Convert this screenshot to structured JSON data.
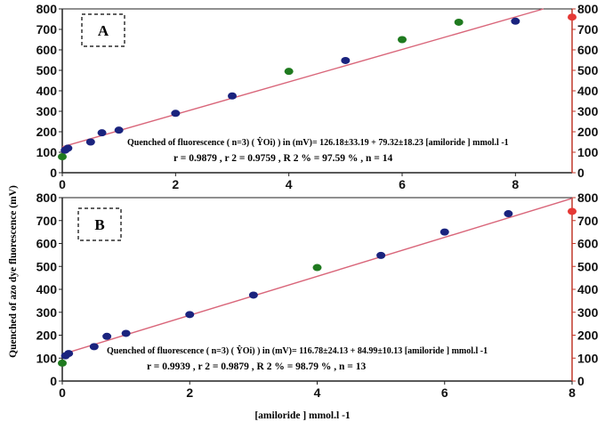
{
  "figure": {
    "ylabel": "Quenched of azo dye fluorescence  (mV)",
    "xlabel": "[amiloride ] mmol.l -1"
  },
  "chart_data": [
    {
      "type": "scatter",
      "panel_label": "A",
      "xlim": [
        0,
        9
      ],
      "ylim": [
        0,
        800
      ],
      "x_ticks": [
        0,
        2,
        4,
        6,
        8
      ],
      "y_ticks": [
        0,
        100,
        200,
        300,
        400,
        500,
        600,
        700,
        800
      ],
      "y_ticks_right": [
        0,
        100,
        200,
        300,
        400,
        500,
        600,
        700,
        800
      ],
      "grid": false,
      "points": [
        {
          "x": 0.0,
          "y": 78,
          "color": "#1f7a1f"
        },
        {
          "x": 0.05,
          "y": 110,
          "color": "#1a237e"
        },
        {
          "x": 0.1,
          "y": 120,
          "color": "#1a237e"
        },
        {
          "x": 0.5,
          "y": 150,
          "color": "#1a237e"
        },
        {
          "x": 0.7,
          "y": 195,
          "color": "#1a237e"
        },
        {
          "x": 1.0,
          "y": 208,
          "color": "#1a237e"
        },
        {
          "x": 2.0,
          "y": 290,
          "color": "#1a237e"
        },
        {
          "x": 3.0,
          "y": 375,
          "color": "#1a237e"
        },
        {
          "x": 4.0,
          "y": 495,
          "color": "#1f7a1f"
        },
        {
          "x": 5.0,
          "y": 548,
          "color": "#1a237e"
        },
        {
          "x": 6.0,
          "y": 650,
          "color": "#1f7a1f"
        },
        {
          "x": 7.0,
          "y": 735,
          "color": "#1f7a1f"
        },
        {
          "x": 8.0,
          "y": 740,
          "color": "#1a237e"
        },
        {
          "x": 9.0,
          "y": 760,
          "color": "#e53935"
        }
      ],
      "fit_line": {
        "intercept": 126.18,
        "slope": 79.32,
        "color": "#d9667a",
        "x_range": [
          0,
          8.6
        ]
      },
      "equation": "Quenched of fluorescence ( n=3) ( ŶOi) )  in (mV)= 126.18±33.19 + 79.32±18.23 [amiloride  ] mmol.l -1",
      "stats": "r = 0.9879   , r 2 = 0.9759  , R 2  % = 97.59 % , n = 14"
    },
    {
      "type": "scatter",
      "panel_label": "B",
      "xlim": [
        0,
        8
      ],
      "ylim": [
        0,
        800
      ],
      "x_ticks": [
        0,
        2,
        4,
        6,
        8
      ],
      "y_ticks": [
        0,
        100,
        200,
        300,
        400,
        500,
        600,
        700,
        800
      ],
      "y_ticks_right": [
        0,
        100,
        200,
        300,
        400,
        500,
        600,
        700,
        800
      ],
      "grid": false,
      "points": [
        {
          "x": 0.0,
          "y": 78,
          "color": "#1f7a1f"
        },
        {
          "x": 0.05,
          "y": 110,
          "color": "#1a237e"
        },
        {
          "x": 0.1,
          "y": 120,
          "color": "#1a237e"
        },
        {
          "x": 0.5,
          "y": 150,
          "color": "#1a237e"
        },
        {
          "x": 0.7,
          "y": 195,
          "color": "#1a237e"
        },
        {
          "x": 1.0,
          "y": 208,
          "color": "#1a237e"
        },
        {
          "x": 2.0,
          "y": 290,
          "color": "#1a237e"
        },
        {
          "x": 3.0,
          "y": 375,
          "color": "#1a237e"
        },
        {
          "x": 4.0,
          "y": 495,
          "color": "#1f7a1f"
        },
        {
          "x": 5.0,
          "y": 548,
          "color": "#1a237e"
        },
        {
          "x": 6.0,
          "y": 650,
          "color": "#1a237e"
        },
        {
          "x": 7.0,
          "y": 730,
          "color": "#1a237e"
        },
        {
          "x": 8.0,
          "y": 740,
          "color": "#e53935"
        }
      ],
      "fit_line": {
        "intercept": 116.78,
        "slope": 84.99,
        "color": "#d9667a",
        "x_range": [
          0,
          8
        ]
      },
      "equation": "Quenched of fluorescence ( n=3) ( ŶOi) )  in (mV)= 116.78±24.13 + 84.99±10.13 [amiloride  ] mmol.l -1",
      "stats": "r = 0.9939     , r 2 = 0.9879  , R 2   % = 98.79 % , n = 13"
    }
  ]
}
